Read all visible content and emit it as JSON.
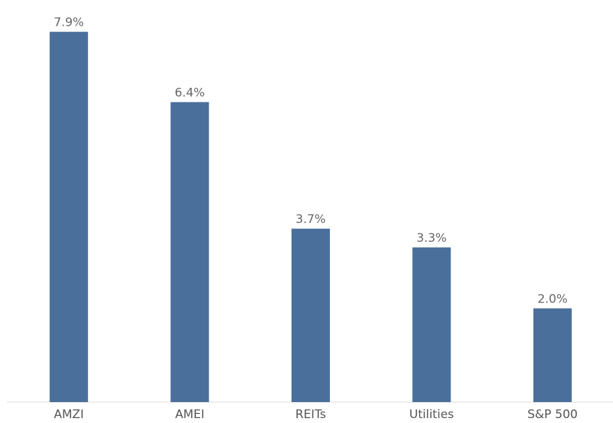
{
  "chart_data": {
    "type": "bar",
    "categories": [
      "AMZI",
      "AMEI",
      "REITs",
      "Utilities",
      "S&P 500"
    ],
    "values": [
      7.9,
      6.4,
      3.7,
      3.3,
      2.0
    ],
    "value_labels": [
      "7.9%",
      "6.4%",
      "3.7%",
      "3.3%",
      "2.0%"
    ],
    "ylim": [
      0,
      8.4
    ],
    "colors": {
      "bar": "#4a6f9b",
      "value_label": "#666666",
      "category_label": "#555555",
      "axis": "#d9d9d9"
    },
    "grid": false,
    "legend": "none"
  }
}
